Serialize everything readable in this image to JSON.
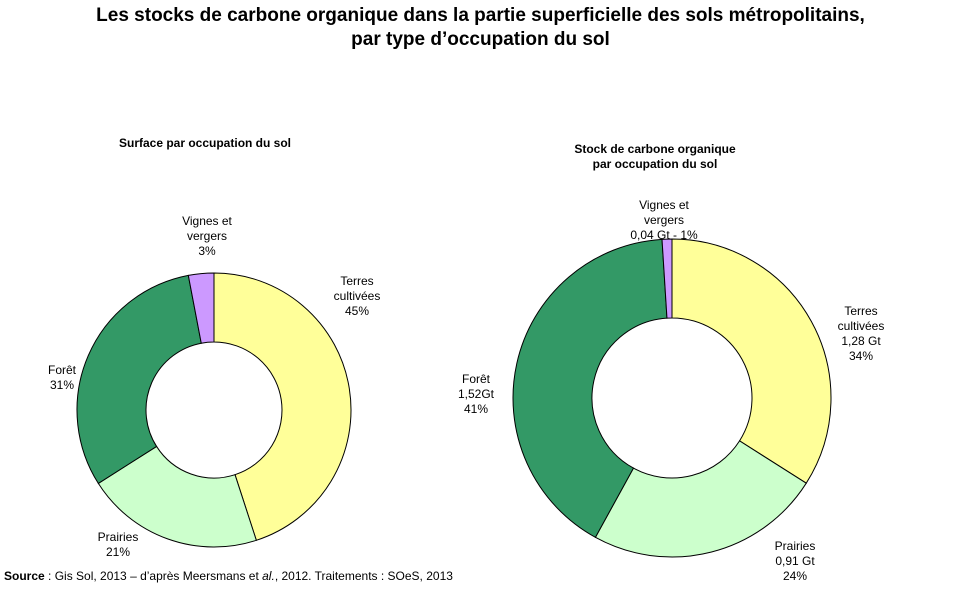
{
  "title_line1": "Les stocks de carbone organique dans la partie superficielle des sols métropolitains,",
  "title_line2": "par type d’occupation du sol",
  "source": {
    "label": "Source",
    "part1": " : Gis Sol, 2013 – d’après Meersmans et ",
    "italic": "al.",
    "part2": ", 2012. Traitements : SOeS, 2013"
  },
  "chart_data": [
    {
      "type": "pie",
      "variant": "donut",
      "title": "Surface par occupation du sol",
      "title_lines": [
        "Surface par occupation du sol"
      ],
      "slices": [
        {
          "name": "Terres cultivées",
          "value": 45,
          "unit": "%",
          "color": "#ffff99",
          "label_lines": [
            "Terres",
            "cultivées",
            "45%"
          ]
        },
        {
          "name": "Prairies",
          "value": 21,
          "unit": "%",
          "color": "#ccffcc",
          "label_lines": [
            "Prairies",
            "21%"
          ]
        },
        {
          "name": "Forêt",
          "value": 31,
          "unit": "%",
          "color": "#339966",
          "label_lines": [
            "Forêt",
            "31%"
          ]
        },
        {
          "name": "Vignes et vergers",
          "value": 3,
          "unit": "%",
          "color": "#cc99ff",
          "label_lines": [
            "Vignes et",
            "vergers",
            "3%"
          ]
        }
      ]
    },
    {
      "type": "pie",
      "variant": "donut",
      "title": "Stock de carbone organique par occupation du sol",
      "title_lines": [
        "Stock de carbone organique",
        "par occupation du sol"
      ],
      "slices": [
        {
          "name": "Terres cultivées",
          "value": 34,
          "stock_gt": 1.28,
          "color": "#ffff99",
          "label_lines": [
            "Terres",
            "cultivées",
            "1,28 Gt",
            "34%"
          ]
        },
        {
          "name": "Prairies",
          "value": 24,
          "stock_gt": 0.91,
          "color": "#ccffcc",
          "label_lines": [
            "Prairies",
            "0,91 Gt",
            "24%"
          ]
        },
        {
          "name": "Forêt",
          "value": 41,
          "stock_gt": 1.52,
          "color": "#339966",
          "label_lines": [
            "Forêt",
            "1,52Gt",
            "41%"
          ]
        },
        {
          "name": "Vignes et vergers",
          "value": 1,
          "stock_gt": 0.04,
          "color": "#cc99ff",
          "label_lines": [
            "Vignes et",
            "vergers",
            "0,04 Gt - 1%"
          ]
        }
      ]
    }
  ]
}
